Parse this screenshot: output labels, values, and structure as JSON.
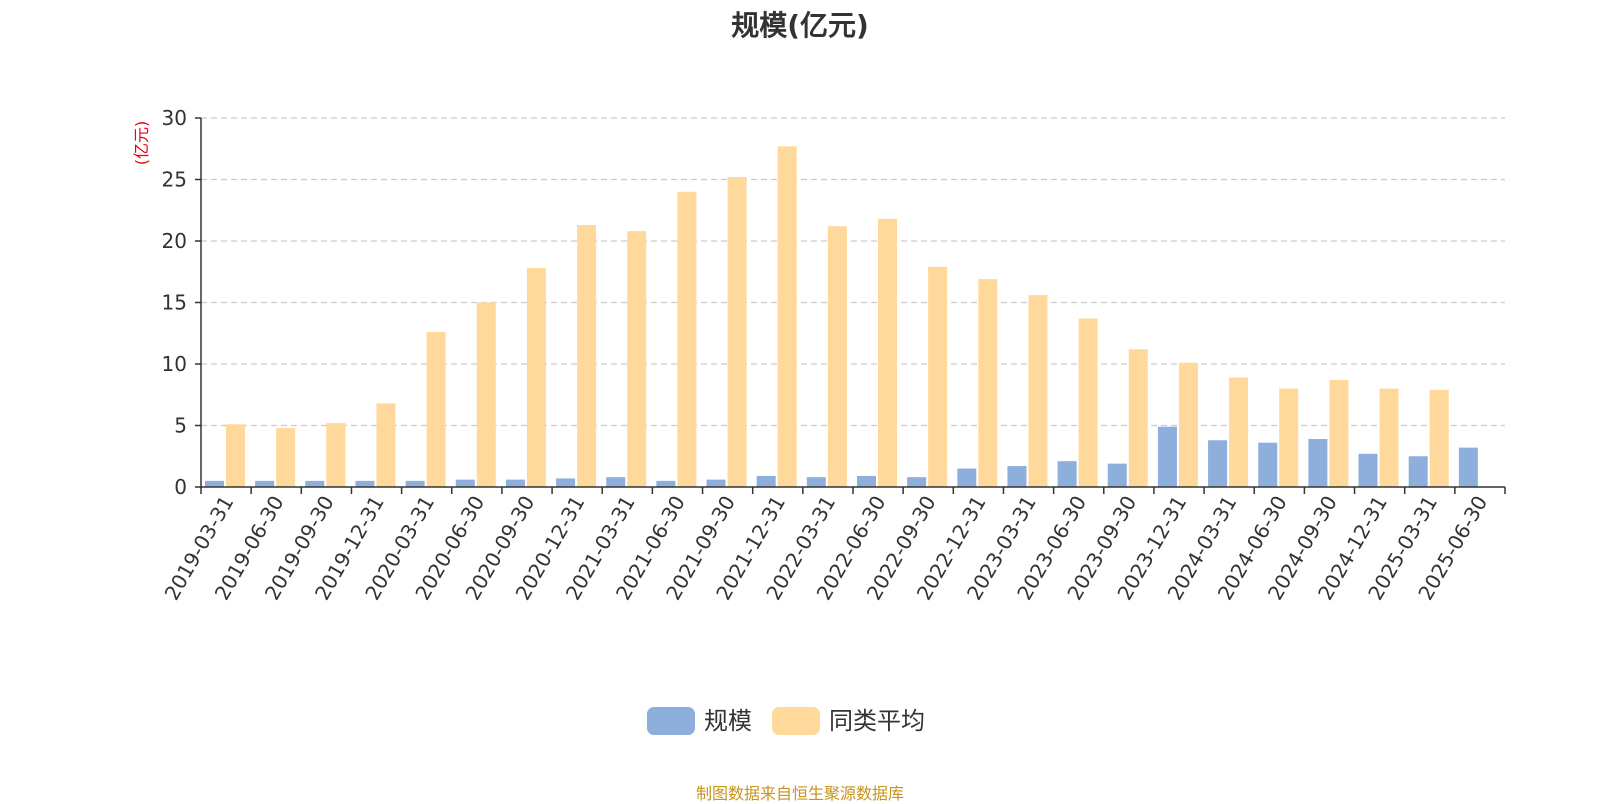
{
  "chart_data": {
    "type": "bar",
    "title": "规模(亿元)",
    "ylabel": "(亿元)",
    "ylim": [
      0,
      30
    ],
    "yticks": [
      0,
      5,
      10,
      15,
      20,
      25,
      30
    ],
    "grid": true,
    "legend_position": "bottom",
    "categories": [
      "2019-03-31",
      "2019-06-30",
      "2019-09-30",
      "2019-12-31",
      "2020-03-31",
      "2020-06-30",
      "2020-09-30",
      "2020-12-31",
      "2021-03-31",
      "2021-06-30",
      "2021-09-30",
      "2021-12-31",
      "2022-03-31",
      "2022-06-30",
      "2022-09-30",
      "2022-12-31",
      "2023-03-31",
      "2023-06-30",
      "2023-09-30",
      "2023-12-31",
      "2024-03-31",
      "2024-06-30",
      "2024-09-30",
      "2024-12-31",
      "2025-03-31",
      "2025-06-30"
    ],
    "series": [
      {
        "name": "规模",
        "color": "#8eaedc",
        "values": [
          0.5,
          0.5,
          0.5,
          0.5,
          0.5,
          0.6,
          0.6,
          0.7,
          0.8,
          0.5,
          0.6,
          0.9,
          0.8,
          0.9,
          0.8,
          1.5,
          1.7,
          2.1,
          1.9,
          4.9,
          3.8,
          3.6,
          3.9,
          2.7,
          2.5,
          3.2
        ]
      },
      {
        "name": "同类平均",
        "color": "#ffd99b",
        "values": [
          5.1,
          4.8,
          5.2,
          6.8,
          12.6,
          15.0,
          17.8,
          21.3,
          20.8,
          24.0,
          25.2,
          27.7,
          21.2,
          21.8,
          17.9,
          16.9,
          15.6,
          13.7,
          11.2,
          10.1,
          8.9,
          8.0,
          8.7,
          8.0,
          7.9,
          null
        ]
      }
    ]
  },
  "source_note": "制图数据来自恒生聚源数据库"
}
